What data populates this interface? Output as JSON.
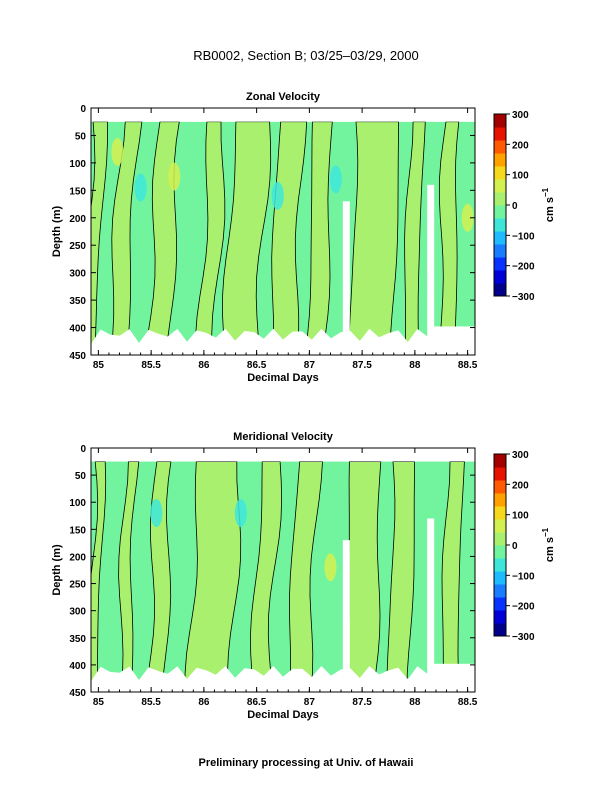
{
  "page": {
    "title": "RB0002, Section B; 03/25–03/29, 2000",
    "footer": "Preliminary processing at Univ. of Hawaii"
  },
  "colors": {
    "light_green": "#a8f06e",
    "aqua_green": "#72f49e",
    "cyan": "#3ee6da",
    "yellow_green": "#d2f050",
    "contour": "#000000"
  },
  "colorbar_scale": [
    "#00008b",
    "#0000d6",
    "#0a32ff",
    "#1a7cff",
    "#1ebcff",
    "#3ee6da",
    "#72f49e",
    "#a8f06e",
    "#d2f050",
    "#f6d81c",
    "#ffa200",
    "#ff5a00",
    "#e81200",
    "#a30000"
  ],
  "chart_data": [
    {
      "type": "heatmap",
      "title": "Zonal Velocity",
      "xlabel": "Decimal Days",
      "ylabel": "Depth (m)",
      "xlim": [
        84.93,
        88.57
      ],
      "ylim": [
        450,
        0
      ],
      "xticks": [
        "85",
        "85.5",
        "86",
        "86.5",
        "87",
        "87.5",
        "88",
        "88.5"
      ],
      "xtick_values": [
        85,
        85.5,
        86,
        86.5,
        87,
        87.5,
        88,
        88.5
      ],
      "yticks": [
        "0",
        "50",
        "100",
        "150",
        "200",
        "250",
        "300",
        "350",
        "400",
        "450"
      ],
      "ytick_values": [
        0,
        50,
        100,
        150,
        200,
        250,
        300,
        350,
        400,
        450
      ],
      "colorbar": {
        "label": "cm s",
        "label_exponent": "−1",
        "ticks": [
          "300",
          "200",
          "100",
          "0",
          "−100",
          "−200",
          "−300"
        ],
        "tick_values": [
          300,
          200,
          100,
          0,
          -100,
          -200,
          -300
        ],
        "range": [
          -300,
          300
        ]
      },
      "data_top_depth": 25,
      "bands": [
        {
          "x": [
            84.95,
            85.07
          ],
          "lean": 0.1,
          "color": "light_green"
        },
        {
          "x": [
            85.22,
            85.38
          ],
          "lean": 0.12,
          "color": "light_green"
        },
        {
          "x": [
            85.58,
            85.78
          ],
          "lean": 0.12,
          "color": "light_green"
        },
        {
          "x": [
            86.05,
            86.2
          ],
          "lean": 0.1,
          "color": "light_green"
        },
        {
          "x": [
            86.3,
            86.62
          ],
          "lean": 0.12,
          "color": "light_green"
        },
        {
          "x": [
            86.72,
            86.95
          ],
          "lean": 0.1,
          "color": "light_green"
        },
        {
          "x": [
            87.05,
            87.22
          ],
          "lean": 0.08,
          "color": "light_green"
        },
        {
          "x": [
            87.45,
            87.85
          ],
          "lean": 0.06,
          "color": "light_green"
        },
        {
          "x": [
            87.95,
            88.08
          ],
          "lean": 0.05,
          "color": "light_green"
        },
        {
          "x": [
            88.28,
            88.42
          ],
          "lean": 0.05,
          "color": "light_green"
        }
      ],
      "spots": [
        {
          "x": 85.18,
          "depth": 80,
          "color": "yellow_green"
        },
        {
          "x": 85.72,
          "depth": 125,
          "color": "yellow_green"
        },
        {
          "x": 88.5,
          "depth": 200,
          "color": "yellow_green"
        },
        {
          "x": 85.4,
          "depth": 145,
          "color": "cyan"
        },
        {
          "x": 86.7,
          "depth": 160,
          "color": "cyan"
        },
        {
          "x": 87.25,
          "depth": 130,
          "color": "cyan"
        }
      ],
      "gaps": [
        {
          "x": 87.35,
          "from_depth": 170,
          "to_depth": 450
        },
        {
          "x": 88.15,
          "from_depth": 140,
          "to_depth": 450
        }
      ]
    },
    {
      "type": "heatmap",
      "title": "Meridional Velocity",
      "xlabel": "Decimal Days",
      "ylabel": "Depth (m)",
      "xlim": [
        84.93,
        88.57
      ],
      "ylim": [
        450,
        0
      ],
      "xticks": [
        "85",
        "85.5",
        "86",
        "86.5",
        "87",
        "87.5",
        "88",
        "88.5"
      ],
      "xtick_values": [
        85,
        85.5,
        86,
        86.5,
        87,
        87.5,
        88,
        88.5
      ],
      "yticks": [
        "0",
        "50",
        "100",
        "150",
        "200",
        "250",
        "300",
        "350",
        "400",
        "450"
      ],
      "ytick_values": [
        0,
        50,
        100,
        150,
        200,
        250,
        300,
        350,
        400,
        450
      ],
      "colorbar": {
        "label": "cm s",
        "label_exponent": "−1",
        "ticks": [
          "300",
          "200",
          "100",
          "0",
          "−100",
          "−200",
          "−300"
        ],
        "tick_values": [
          300,
          200,
          100,
          0,
          -100,
          -200,
          -300
        ],
        "range": [
          -300,
          300
        ]
      },
      "data_top_depth": 25,
      "bands": [
        {
          "x": [
            84.97,
            85.05
          ],
          "lean": 0.06,
          "color": "light_green"
        },
        {
          "x": [
            85.25,
            85.35
          ],
          "lean": 0.05,
          "color": "light_green"
        },
        {
          "x": [
            85.55,
            85.7
          ],
          "lean": 0.08,
          "color": "light_green"
        },
        {
          "x": [
            85.95,
            86.35
          ],
          "lean": 0.1,
          "color": "light_green"
        },
        {
          "x": [
            86.55,
            86.72
          ],
          "lean": 0.1,
          "color": "light_green"
        },
        {
          "x": [
            86.9,
            87.1
          ],
          "lean": 0.12,
          "color": "light_green"
        },
        {
          "x": [
            87.4,
            87.68
          ],
          "lean": 0.06,
          "color": "light_green"
        },
        {
          "x": [
            87.8,
            88.0
          ],
          "lean": 0.05,
          "color": "light_green"
        },
        {
          "x": [
            88.3,
            88.45
          ],
          "lean": 0.04,
          "color": "light_green"
        }
      ],
      "spots": [
        {
          "x": 85.55,
          "depth": 120,
          "color": "cyan"
        },
        {
          "x": 86.35,
          "depth": 120,
          "color": "cyan"
        },
        {
          "x": 87.2,
          "depth": 220,
          "color": "yellow_green"
        }
      ],
      "gaps": [
        {
          "x": 87.35,
          "from_depth": 170,
          "to_depth": 450
        },
        {
          "x": 88.15,
          "from_depth": 130,
          "to_depth": 450
        }
      ]
    }
  ]
}
